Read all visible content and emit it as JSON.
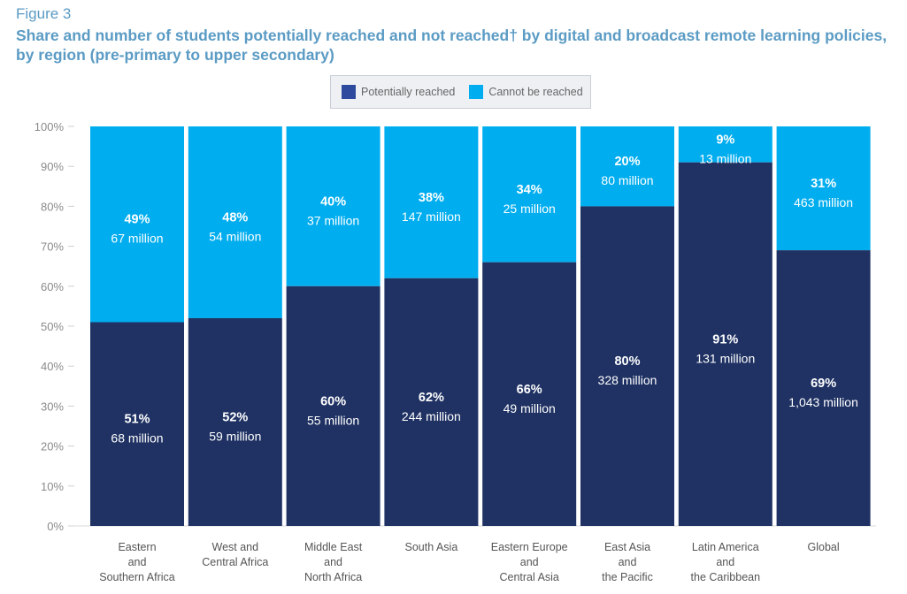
{
  "figure_label": "Figure 3",
  "title": "Share and number of students potentially reached and not reached† by digital and broadcast remote learning policies, by region (pre-primary to upper secondary)",
  "chart_data": {
    "type": "bar",
    "stacked": true,
    "percent": true,
    "categories": [
      "Eastern and Southern Africa",
      "West and Central Africa",
      "Middle East and North Africa",
      "South Asia",
      "Eastern Europe and Central Asia",
      "East Asia and the Pacific",
      "Latin America and the Caribbean",
      "Global"
    ],
    "category_lines": [
      [
        "Eastern",
        "and",
        "Southern Africa"
      ],
      [
        "West and",
        "Central Africa"
      ],
      [
        "Middle East",
        "and",
        "North Africa"
      ],
      [
        "South Asia"
      ],
      [
        "Eastern Europe",
        "and",
        "Central Asia"
      ],
      [
        "East Asia",
        "and",
        "the Pacific"
      ],
      [
        "Latin America",
        "and",
        "the Caribbean"
      ],
      [
        "Global"
      ]
    ],
    "series": [
      {
        "name": "Potentially reached",
        "color": "#1f3263",
        "values": [
          51,
          52,
          60,
          62,
          66,
          80,
          91,
          69
        ],
        "pct_labels": [
          "51%",
          "52%",
          "60%",
          "62%",
          "66%",
          "80%",
          "91%",
          "69%"
        ],
        "count_labels": [
          "68 million",
          "59 million",
          "55 million",
          "244 million",
          "49 million",
          "328 million",
          "131 million",
          "1,043 million"
        ]
      },
      {
        "name": "Cannot be reached",
        "color": "#00adef",
        "values": [
          49,
          48,
          40,
          38,
          34,
          20,
          9,
          31
        ],
        "pct_labels": [
          "49%",
          "48%",
          "40%",
          "38%",
          "34%",
          "20%",
          "9%",
          "31%"
        ],
        "count_labels": [
          "67 million",
          "54 million",
          "37 million",
          "147 million",
          "25 million",
          "80 million",
          "13 million",
          "463 million"
        ]
      }
    ],
    "yticks": [
      "0%",
      "10%",
      "20%",
      "30%",
      "40%",
      "50%",
      "60%",
      "70%",
      "80%",
      "90%",
      "100%"
    ],
    "ylim": [
      0,
      100
    ],
    "legend_position": "top-center",
    "grid": false
  }
}
